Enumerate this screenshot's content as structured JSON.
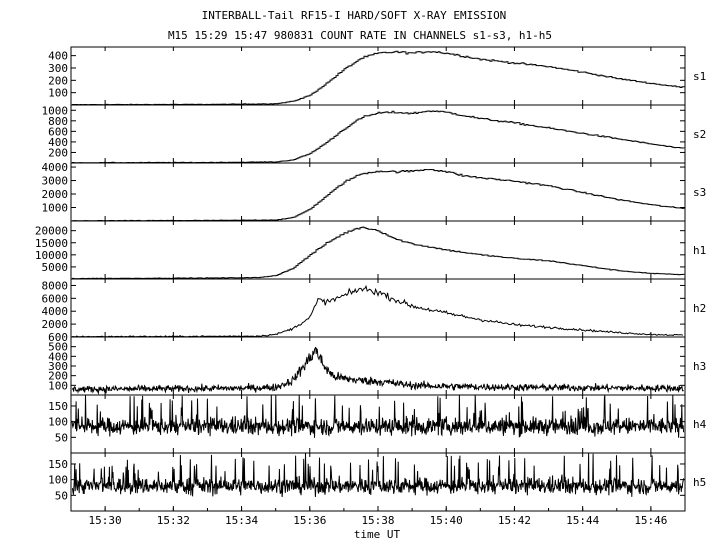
{
  "chart_data": {
    "type": "line",
    "title": "INTERBALL-Tail RF15-I HARD/SOFT X-RAY EMISSION",
    "subtitle": "M15  15:29 15:47 980831  COUNT RATE IN CHANNELS s1-s3, h1-h5",
    "xlabel": "time UT",
    "x_ticks": [
      "15:30",
      "15:32",
      "15:34",
      "15:36",
      "15:38",
      "15:40",
      "15:42",
      "15:44",
      "15:46"
    ],
    "xlim": [
      "15:29:00",
      "15:47:00"
    ],
    "panels": [
      {
        "name": "s1",
        "ylim": [
          0,
          470
        ],
        "yticks": [
          100,
          200,
          300,
          400
        ],
        "points": [
          [
            "15:29:00",
            3
          ],
          [
            "15:31:00",
            4
          ],
          [
            "15:33:00",
            5
          ],
          [
            "15:35:00",
            10
          ],
          [
            "15:35:30",
            30
          ],
          [
            "15:36:00",
            80
          ],
          [
            "15:36:30",
            180
          ],
          [
            "15:37:00",
            290
          ],
          [
            "15:37:30",
            380
          ],
          [
            "15:38:00",
            420
          ],
          [
            "15:38:30",
            430
          ],
          [
            "15:39:00",
            420
          ],
          [
            "15:39:30",
            435
          ],
          [
            "15:40:00",
            420
          ],
          [
            "15:40:30",
            395
          ],
          [
            "15:41:00",
            370
          ],
          [
            "15:42:00",
            340
          ],
          [
            "15:43:00",
            310
          ],
          [
            "15:44:00",
            265
          ],
          [
            "15:45:00",
            215
          ],
          [
            "15:46:00",
            175
          ],
          [
            "15:46:50",
            145
          ]
        ],
        "noise": "low"
      },
      {
        "name": "s2",
        "ylim": [
          0,
          1100
        ],
        "yticks": [
          200,
          400,
          600,
          800,
          1000
        ],
        "points": [
          [
            "15:29:00",
            5
          ],
          [
            "15:31:00",
            8
          ],
          [
            "15:33:00",
            10
          ],
          [
            "15:35:00",
            20
          ],
          [
            "15:35:30",
            60
          ],
          [
            "15:36:00",
            180
          ],
          [
            "15:36:30",
            400
          ],
          [
            "15:37:00",
            650
          ],
          [
            "15:37:30",
            860
          ],
          [
            "15:38:00",
            950
          ],
          [
            "15:38:30",
            960
          ],
          [
            "15:39:00",
            940
          ],
          [
            "15:39:30",
            990
          ],
          [
            "15:40:00",
            960
          ],
          [
            "15:40:30",
            900
          ],
          [
            "15:41:00",
            840
          ],
          [
            "15:42:00",
            760
          ],
          [
            "15:43:00",
            660
          ],
          [
            "15:44:00",
            560
          ],
          [
            "15:45:00",
            460
          ],
          [
            "15:46:00",
            360
          ],
          [
            "15:46:50",
            280
          ]
        ],
        "noise": "low"
      },
      {
        "name": "s3",
        "ylim": [
          0,
          4300
        ],
        "yticks": [
          1000,
          2000,
          3000,
          4000
        ],
        "points": [
          [
            "15:29:00",
            20
          ],
          [
            "15:31:00",
            30
          ],
          [
            "15:33:00",
            40
          ],
          [
            "15:35:00",
            80
          ],
          [
            "15:35:30",
            250
          ],
          [
            "15:36:00",
            900
          ],
          [
            "15:36:30",
            1900
          ],
          [
            "15:37:00",
            2900
          ],
          [
            "15:37:30",
            3500
          ],
          [
            "15:38:00",
            3700
          ],
          [
            "15:38:30",
            3650
          ],
          [
            "15:39:00",
            3700
          ],
          [
            "15:39:30",
            3850
          ],
          [
            "15:40:00",
            3650
          ],
          [
            "15:40:30",
            3350
          ],
          [
            "15:41:00",
            3200
          ],
          [
            "15:42:00",
            2950
          ],
          [
            "15:43:00",
            2600
          ],
          [
            "15:44:00",
            2100
          ],
          [
            "15:45:00",
            1600
          ],
          [
            "15:46:00",
            1200
          ],
          [
            "15:46:50",
            950
          ]
        ],
        "noise": "low"
      },
      {
        "name": "h1",
        "ylim": [
          0,
          24000
        ],
        "yticks": [
          5000,
          10000,
          15000,
          20000
        ],
        "points": [
          [
            "15:29:00",
            200
          ],
          [
            "15:31:00",
            300
          ],
          [
            "15:33:00",
            400
          ],
          [
            "15:34:30",
            600
          ],
          [
            "15:35:00",
            1500
          ],
          [
            "15:35:30",
            4500
          ],
          [
            "15:36:00",
            10000
          ],
          [
            "15:36:30",
            15000
          ],
          [
            "15:37:00",
            19000
          ],
          [
            "15:37:30",
            21500
          ],
          [
            "15:38:00",
            20000
          ],
          [
            "15:38:30",
            16500
          ],
          [
            "15:39:00",
            14500
          ],
          [
            "15:40:00",
            12000
          ],
          [
            "15:41:00",
            10000
          ],
          [
            "15:42:00",
            8500
          ],
          [
            "15:43:00",
            7500
          ],
          [
            "15:44:00",
            5500
          ],
          [
            "15:45:00",
            3500
          ],
          [
            "15:46:00",
            2300
          ],
          [
            "15:46:50",
            1800
          ]
        ],
        "noise": "low"
      },
      {
        "name": "h2",
        "ylim": [
          0,
          9000
        ],
        "yticks": [
          2000,
          4000,
          6000,
          8000
        ],
        "points": [
          [
            "15:29:00",
            50
          ],
          [
            "15:31:00",
            80
          ],
          [
            "15:33:00",
            100
          ],
          [
            "15:34:30",
            150
          ],
          [
            "15:35:00",
            400
          ],
          [
            "15:35:30",
            1300
          ],
          [
            "15:36:00",
            3000
          ],
          [
            "15:36:15",
            5800
          ],
          [
            "15:36:30",
            5400
          ],
          [
            "15:37:00",
            6400
          ],
          [
            "15:37:30",
            7500
          ],
          [
            "15:38:00",
            7000
          ],
          [
            "15:38:30",
            5800
          ],
          [
            "15:39:00",
            4800
          ],
          [
            "15:40:00",
            3700
          ],
          [
            "15:41:00",
            2700
          ],
          [
            "15:42:00",
            1900
          ],
          [
            "15:43:00",
            1500
          ],
          [
            "15:44:00",
            1100
          ],
          [
            "15:45:00",
            700
          ],
          [
            "15:46:00",
            400
          ],
          [
            "15:46:50",
            300
          ]
        ],
        "noise": "medium"
      },
      {
        "name": "h3",
        "ylim": [
          0,
          600
        ],
        "yticks": [
          100,
          200,
          300,
          400,
          500,
          600
        ],
        "points": [
          [
            "15:29:00",
            60
          ],
          [
            "15:32:00",
            65
          ],
          [
            "15:34:00",
            70
          ],
          [
            "15:35:00",
            80
          ],
          [
            "15:35:30",
            150
          ],
          [
            "15:36:00",
            380
          ],
          [
            "15:36:10",
            470
          ],
          [
            "15:36:25",
            300
          ],
          [
            "15:36:40",
            200
          ],
          [
            "15:37:00",
            170
          ],
          [
            "15:37:30",
            150
          ],
          [
            "15:38:00",
            140
          ],
          [
            "15:39:00",
            100
          ],
          [
            "15:40:00",
            90
          ],
          [
            "15:42:00",
            80
          ],
          [
            "15:44:00",
            75
          ],
          [
            "15:46:50",
            70
          ]
        ],
        "noise": "high"
      },
      {
        "name": "h4",
        "ylim": [
          0,
          185
        ],
        "yticks": [
          50,
          100,
          150
        ],
        "points": [
          [
            "15:29:00",
            85
          ],
          [
            "15:46:50",
            85
          ]
        ],
        "noise": "very-high"
      },
      {
        "name": "h5",
        "ylim": [
          0,
          185
        ],
        "yticks": [
          50,
          100,
          150
        ],
        "points": [
          [
            "15:29:00",
            80
          ],
          [
            "15:46:50",
            80
          ]
        ],
        "noise": "very-high"
      }
    ],
    "grid": false,
    "legend": "none",
    "line_color": "#000000"
  }
}
